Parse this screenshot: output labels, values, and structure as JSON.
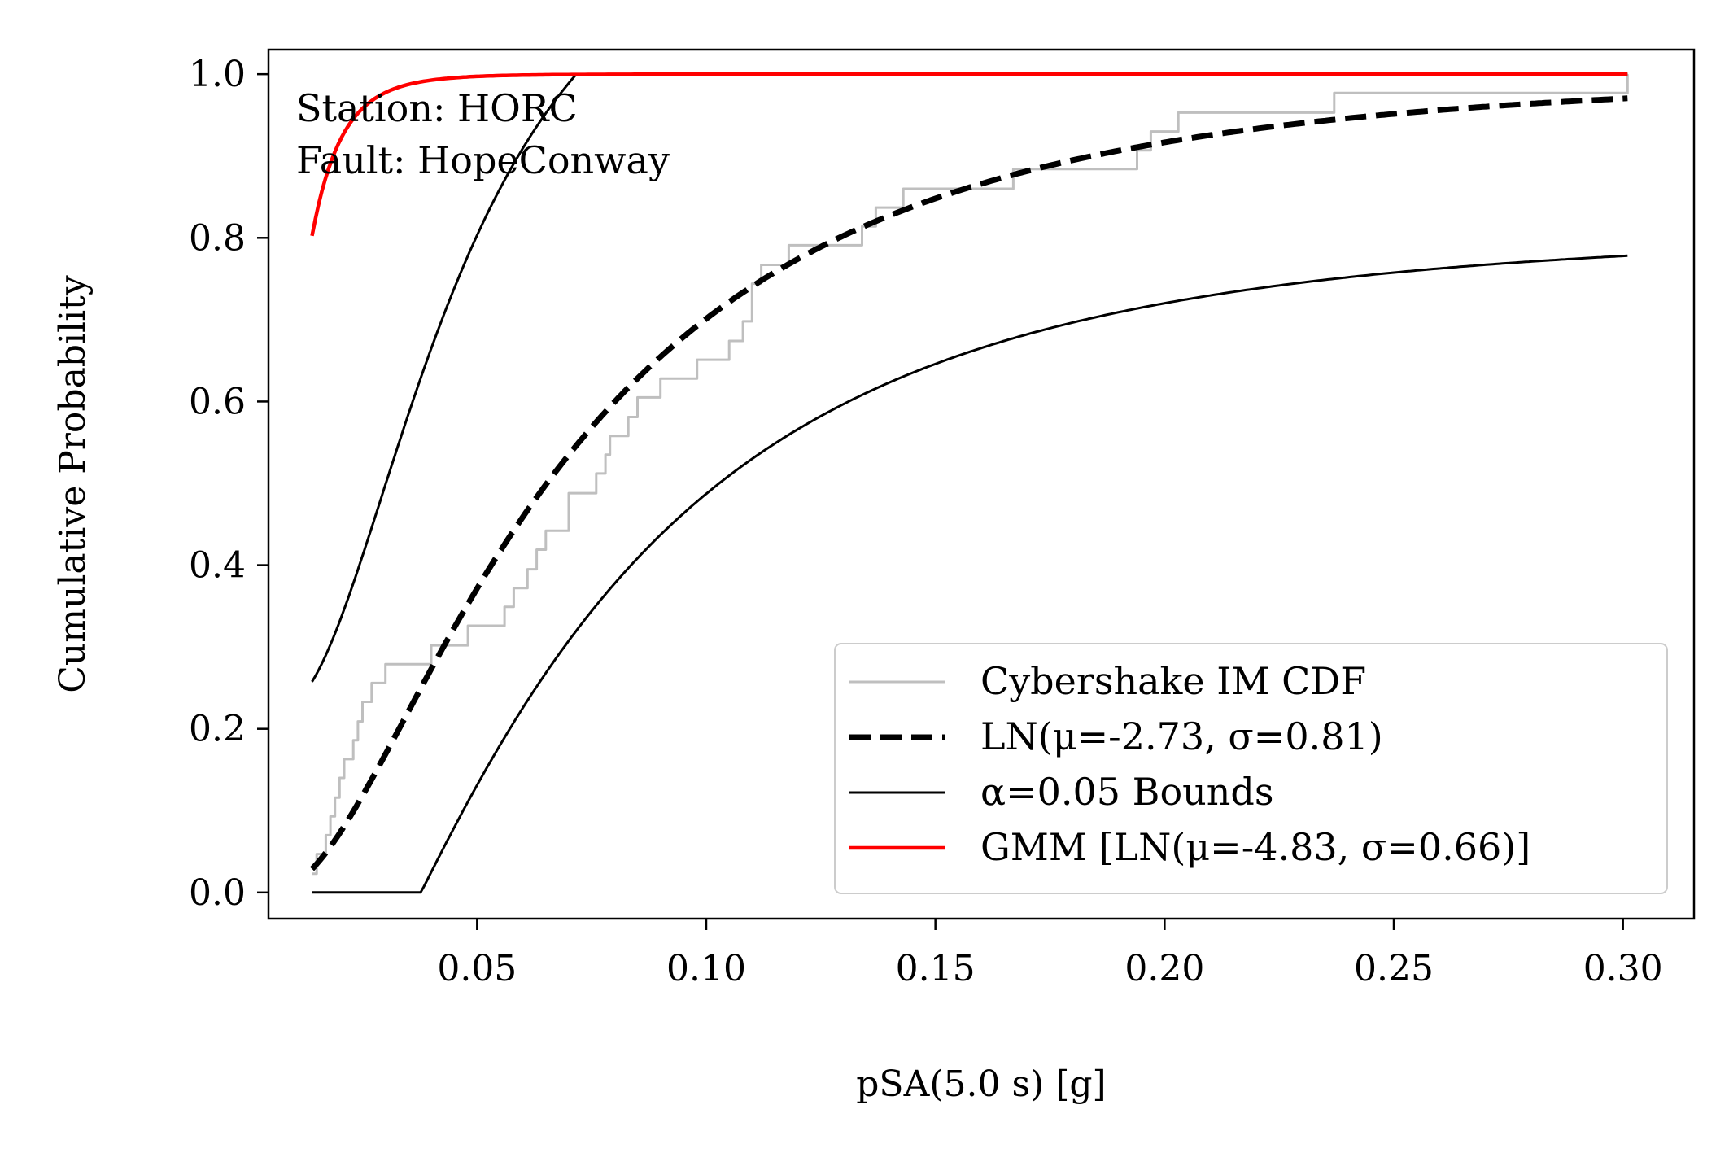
{
  "chart_data": {
    "type": "line",
    "title": "",
    "xlabel": "pSA(5.0 s) [g]",
    "ylabel": "Cumulative Probability",
    "xlim": [
      0.0045,
      0.3155
    ],
    "ylim": [
      -0.032,
      1.03
    ],
    "xticks": [
      0.05,
      0.1,
      0.15,
      0.2,
      0.25,
      0.3
    ],
    "xtick_labels": [
      "0.05",
      "0.10",
      "0.15",
      "0.20",
      "0.25",
      "0.30"
    ],
    "yticks": [
      0.0,
      0.2,
      0.4,
      0.6,
      0.8,
      1.0
    ],
    "ytick_labels": [
      "0.0",
      "0.2",
      "0.4",
      "0.6",
      "0.8",
      "1.0"
    ],
    "grid": false,
    "legend_position": "lower-right",
    "annotations": [
      "Station: HORC",
      "Fault: HopeConway"
    ],
    "series": [
      {
        "name": "Cybershake IM CDF",
        "kind": "step",
        "color": "#bfbfbf",
        "x": [
          0.014,
          0.015,
          0.017,
          0.018,
          0.019,
          0.02,
          0.021,
          0.023,
          0.024,
          0.025,
          0.027,
          0.03,
          0.031,
          0.04,
          0.048,
          0.056,
          0.058,
          0.061,
          0.063,
          0.065,
          0.07,
          0.076,
          0.078,
          0.079,
          0.083,
          0.085,
          0.09,
          0.098,
          0.105,
          0.108,
          0.11,
          0.112,
          0.118,
          0.123,
          0.129,
          0.134,
          0.137,
          0.143,
          0.146,
          0.153,
          0.167,
          0.18,
          0.194,
          0.197,
          0.203,
          0.223,
          0.237,
          0.252,
          0.301
        ],
        "y": [
          0.023,
          0.047,
          0.07,
          0.093,
          0.116,
          0.14,
          0.163,
          0.186,
          0.209,
          0.233,
          0.256,
          0.279,
          0.279,
          0.302,
          0.326,
          0.349,
          0.372,
          0.395,
          0.419,
          0.442,
          0.488,
          0.512,
          0.535,
          0.558,
          0.581,
          0.605,
          0.628,
          0.651,
          0.674,
          0.698,
          0.744,
          0.767,
          0.791,
          0.791,
          0.791,
          0.814,
          0.837,
          0.86,
          0.86,
          0.86,
          0.884,
          0.884,
          0.907,
          0.93,
          0.953,
          0.953,
          0.977,
          0.977,
          1.0
        ]
      },
      {
        "name": "LN(μ=-2.73, σ=0.81)",
        "kind": "lognormal_cdf",
        "color": "#000000",
        "mu": -2.73,
        "sigma": 0.81,
        "scale": 1.0,
        "shift": 0.0,
        "x_range": [
          0.014,
          0.301
        ]
      },
      {
        "name": "α=0.05 Bounds",
        "kind": "lognormal_cdf",
        "color": "#000000",
        "mu": -3.13,
        "sigma": 0.64,
        "scale": 1.0,
        "shift": 0.22,
        "x_range": [
          0.014,
          0.301
        ]
      },
      {
        "name": "",
        "kind": "lognormal_cdf",
        "color": "#000000",
        "mu": -2.73,
        "sigma": 0.81,
        "scale": 1.08,
        "shift": -0.27,
        "x_range": [
          0.014,
          0.301
        ]
      },
      {
        "name": "GMM [LN(μ=-4.83, σ=0.66)]",
        "kind": "lognormal_cdf",
        "color": "#ff0000",
        "mu": -4.83,
        "sigma": 0.66,
        "scale": 1.0,
        "shift": 0.0,
        "x_range": [
          0.014,
          0.301
        ]
      }
    ]
  }
}
